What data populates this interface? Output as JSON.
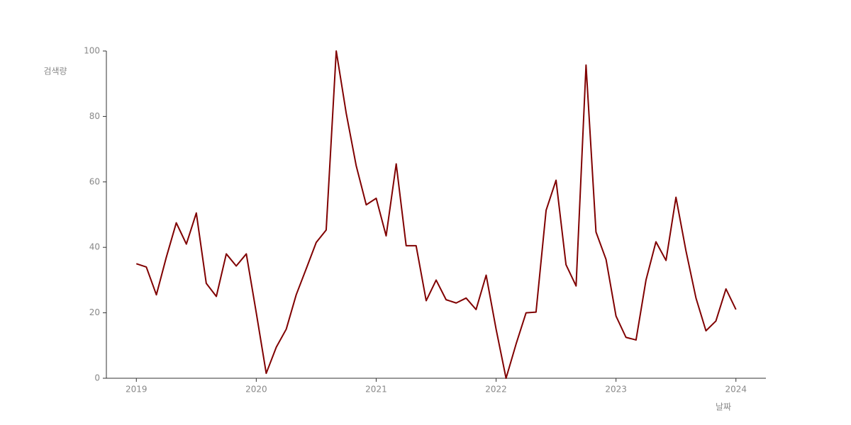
{
  "chart_data": {
    "type": "line",
    "x_label": "날짜",
    "y_label": "검색량",
    "x": [
      2019,
      2019.083,
      2019.167,
      2019.25,
      2019.333,
      2019.417,
      2019.5,
      2019.583,
      2019.667,
      2019.75,
      2019.833,
      2019.917,
      2020,
      2020.083,
      2020.167,
      2020.25,
      2020.333,
      2020.417,
      2020.5,
      2020.583,
      2020.667,
      2020.75,
      2020.833,
      2020.917,
      2021,
      2021.083,
      2021.167,
      2021.25,
      2021.333,
      2021.417,
      2021.5,
      2021.583,
      2021.667,
      2021.75,
      2021.833,
      2021.917,
      2022,
      2022.083,
      2022.167,
      2022.25,
      2022.333,
      2022.417,
      2022.5,
      2022.583,
      2022.667,
      2022.75,
      2022.833,
      2022.917,
      2023,
      2023.083,
      2023.167,
      2023.25,
      2023.333,
      2023.417,
      2023.5,
      2023.583,
      2023.667,
      2023.75,
      2023.833,
      2023.917,
      2024
    ],
    "series": [
      {
        "color": "#800000",
        "values": [
          35,
          34,
          25.5,
          37,
          47.5,
          41,
          50.5,
          29,
          25,
          38,
          34.3,
          38,
          20,
          1.5,
          9.5,
          15,
          25.5,
          33.5,
          41.5,
          45.3,
          100,
          81,
          65,
          53,
          55,
          43.5,
          65.5,
          40.5,
          40.5,
          23.7,
          30,
          24,
          23,
          24.5,
          21,
          31.5,
          15,
          0,
          10.5,
          20,
          20.2,
          51.3,
          60.5,
          34.7,
          28.2,
          95.7,
          44.7,
          36.3,
          19,
          12.5,
          11.7,
          30,
          41.7,
          36,
          55.3,
          39,
          24.5,
          14.5,
          17.5,
          27.3,
          21
        ]
      }
    ],
    "xlim": [
      2018.75,
      2024.25
    ],
    "xticks": [
      2019,
      2020,
      2021,
      2022,
      2023,
      2024
    ],
    "ylim": [
      0,
      100
    ],
    "yticks": [
      0,
      20,
      40,
      60,
      80,
      100
    ]
  }
}
